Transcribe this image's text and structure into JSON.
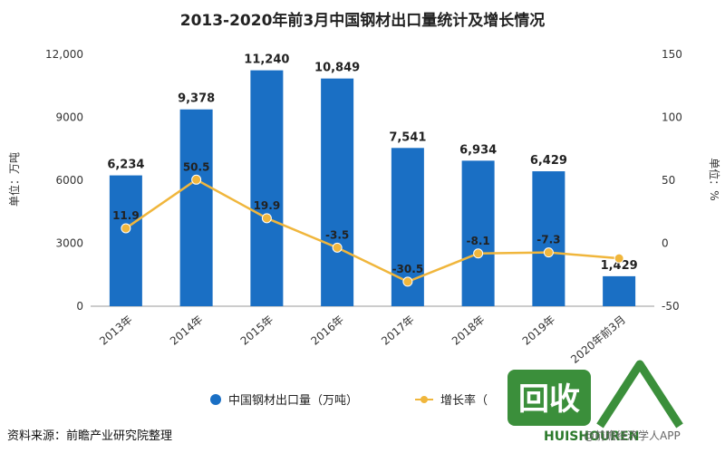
{
  "chart_data": {
    "type": "bar",
    "title": "2013-2020年前3月中国钢材出口量统计及增长情况",
    "categories": [
      "2013年",
      "2014年",
      "2015年",
      "2016年",
      "2017年",
      "2018年",
      "2019年",
      "2020年前3月"
    ],
    "series": [
      {
        "name": "中国钢材出口量（万吨）",
        "type": "bar",
        "axis": "left",
        "color": "#1a6fc4",
        "values": [
          6234,
          9378,
          11240,
          10849,
          7541,
          6934,
          6429,
          1429
        ],
        "labels": [
          "6,234",
          "9,378",
          "11,240",
          "10,849",
          "7,541",
          "6,934",
          "6,429",
          "1,429"
        ]
      },
      {
        "name": "增长率（",
        "type": "line",
        "axis": "right",
        "color": "#f0b63c",
        "values": [
          11.9,
          50.5,
          19.9,
          -3.5,
          -30.5,
          -8.1,
          -7.3,
          -12
        ],
        "labels": [
          "11.9",
          "50.5",
          "19.9",
          "-3.5",
          "-30.5",
          "-8.1",
          "-7.3",
          ""
        ]
      }
    ],
    "y_left": {
      "label": "单位：万吨",
      "range": [
        0,
        12000
      ],
      "ticks": [
        0,
        3000,
        6000,
        9000,
        12000
      ],
      "tick_labels": [
        "0",
        "3000",
        "6000",
        "9000",
        "12,000"
      ]
    },
    "y_right": {
      "label": "单位：%",
      "range": [
        -50,
        150
      ],
      "ticks": [
        -50,
        0,
        50,
        100,
        150
      ],
      "tick_labels": [
        "-50",
        "0",
        "50",
        "100",
        "150"
      ]
    },
    "grid": false,
    "legend_position": "bottom-center"
  },
  "source": "资料来源：前瞻产业研究院整理",
  "watermark": {
    "logo_text": "HUISHOUREN",
    "app_text": "@前瞻经济学人APP",
    "color": "#2b7a2b"
  }
}
